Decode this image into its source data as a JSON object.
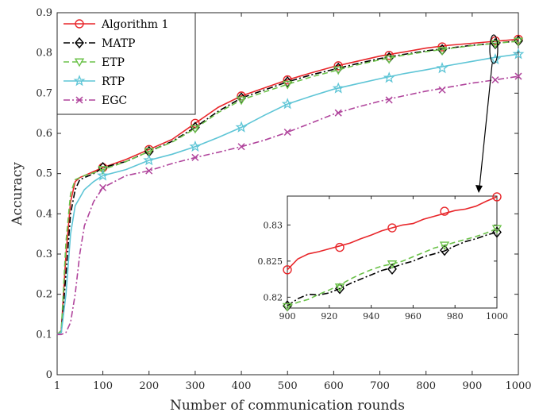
{
  "chart_data": {
    "type": "line",
    "xlabel": "Number of communication rounds",
    "ylabel": "Accuracy",
    "xlim": [
      1,
      1000
    ],
    "ylim": [
      0,
      0.9
    ],
    "xticks": [
      "1",
      "100",
      "200",
      "300",
      "400",
      "500",
      "600",
      "700",
      "800",
      "900",
      "1000"
    ],
    "yticks": [
      "0",
      "0.1",
      "0.2",
      "0.3",
      "0.4",
      "0.5",
      "0.6",
      "0.7",
      "0.8",
      "0.9"
    ],
    "grid": false,
    "legend_position": "top-left",
    "series": [
      {
        "name": "Algorithm 1",
        "color": "#e8262a",
        "marker": "circle",
        "dash": "solid",
        "x": [
          1,
          10,
          20,
          30,
          40,
          50,
          60,
          80,
          100,
          150,
          200,
          250,
          300,
          350,
          400,
          450,
          500,
          550,
          600,
          650,
          700,
          750,
          800,
          850,
          900,
          950,
          1000
        ],
        "y": [
          0.1,
          0.11,
          0.3,
          0.43,
          0.48,
          0.49,
          0.495,
          0.505,
          0.515,
          0.535,
          0.56,
          0.585,
          0.625,
          0.665,
          0.693,
          0.713,
          0.733,
          0.75,
          0.766,
          0.779,
          0.792,
          0.802,
          0.812,
          0.819,
          0.824,
          0.829,
          0.834
        ],
        "marker_x": [
          100,
          200,
          300,
          400,
          500,
          610,
          720,
          835,
          950,
          1000
        ],
        "marker_y": [
          0.515,
          0.56,
          0.625,
          0.693,
          0.733,
          0.768,
          0.794,
          0.815,
          0.83,
          0.834
        ]
      },
      {
        "name": "MATP",
        "color": "#000000",
        "marker": "diamond",
        "dash": "dashdot",
        "x": [
          1,
          10,
          20,
          30,
          40,
          50,
          60,
          80,
          100,
          150,
          200,
          250,
          300,
          350,
          400,
          450,
          500,
          550,
          600,
          650,
          700,
          750,
          800,
          850,
          900,
          950,
          1000
        ],
        "y": [
          0.1,
          0.105,
          0.25,
          0.4,
          0.46,
          0.485,
          0.49,
          0.5,
          0.515,
          0.53,
          0.555,
          0.58,
          0.615,
          0.655,
          0.688,
          0.708,
          0.728,
          0.745,
          0.759,
          0.773,
          0.786,
          0.796,
          0.805,
          0.812,
          0.819,
          0.824,
          0.83
        ],
        "marker_x": [
          100,
          200,
          300,
          400,
          500,
          610,
          720,
          835,
          950,
          1000
        ],
        "marker_y": [
          0.515,
          0.555,
          0.615,
          0.688,
          0.728,
          0.762,
          0.788,
          0.808,
          0.823,
          0.83
        ]
      },
      {
        "name": "ETP",
        "color": "#6cc24a",
        "marker": "triangle-down",
        "dash": "dashed",
        "x": [
          1,
          10,
          20,
          30,
          40,
          50,
          60,
          80,
          100,
          150,
          200,
          250,
          300,
          350,
          400,
          450,
          500,
          550,
          600,
          650,
          700,
          750,
          800,
          850,
          900,
          950,
          1000
        ],
        "y": [
          0.1,
          0.11,
          0.33,
          0.45,
          0.485,
          0.49,
          0.495,
          0.502,
          0.51,
          0.53,
          0.555,
          0.578,
          0.612,
          0.652,
          0.683,
          0.703,
          0.722,
          0.74,
          0.755,
          0.77,
          0.783,
          0.794,
          0.803,
          0.811,
          0.818,
          0.824,
          0.829
        ],
        "marker_x": [
          100,
          200,
          300,
          400,
          500,
          610,
          720,
          835,
          950,
          1000
        ],
        "marker_y": [
          0.51,
          0.555,
          0.612,
          0.683,
          0.722,
          0.758,
          0.785,
          0.806,
          0.823,
          0.829
        ]
      },
      {
        "name": "RTP",
        "color": "#5ec5d6",
        "marker": "star",
        "dash": "solid",
        "x": [
          1,
          10,
          20,
          30,
          40,
          50,
          60,
          80,
          100,
          150,
          200,
          250,
          300,
          350,
          400,
          450,
          500,
          550,
          600,
          650,
          700,
          750,
          800,
          850,
          900,
          950,
          1000
        ],
        "y": [
          0.1,
          0.105,
          0.2,
          0.35,
          0.42,
          0.44,
          0.46,
          0.48,
          0.495,
          0.51,
          0.533,
          0.548,
          0.567,
          0.59,
          0.615,
          0.645,
          0.673,
          0.692,
          0.71,
          0.723,
          0.736,
          0.748,
          0.758,
          0.769,
          0.779,
          0.789,
          0.797
        ],
        "marker_x": [
          100,
          200,
          300,
          400,
          500,
          610,
          720,
          835,
          950,
          1000
        ],
        "marker_y": [
          0.495,
          0.533,
          0.567,
          0.615,
          0.673,
          0.712,
          0.738,
          0.762,
          0.784,
          0.797
        ]
      },
      {
        "name": "EGC",
        "color": "#b0449c",
        "marker": "x",
        "dash": "dashdot",
        "x": [
          1,
          10,
          20,
          30,
          40,
          50,
          60,
          80,
          100,
          150,
          200,
          250,
          300,
          350,
          400,
          450,
          500,
          550,
          600,
          650,
          700,
          750,
          800,
          850,
          900,
          950,
          1000
        ],
        "y": [
          0.1,
          0.1,
          0.105,
          0.13,
          0.2,
          0.3,
          0.37,
          0.43,
          0.465,
          0.495,
          0.507,
          0.525,
          0.54,
          0.553,
          0.567,
          0.583,
          0.603,
          0.625,
          0.648,
          0.665,
          0.68,
          0.693,
          0.705,
          0.715,
          0.725,
          0.733,
          0.742
        ],
        "marker_x": [
          100,
          200,
          300,
          400,
          500,
          610,
          720,
          835,
          950,
          1000
        ],
        "marker_y": [
          0.465,
          0.507,
          0.54,
          0.567,
          0.603,
          0.651,
          0.683,
          0.708,
          0.733,
          0.742
        ]
      }
    ],
    "inset": {
      "xlim": [
        900,
        1000
      ],
      "ylim": [
        0.8185,
        0.834
      ],
      "xticks": [
        "900",
        "920",
        "940",
        "960",
        "980",
        "1000"
      ],
      "yticks": [
        "0.82",
        "0.825",
        "0.83"
      ],
      "series": [
        {
          "name": "Algorithm 1",
          "x": [
            900,
            905,
            910,
            915,
            920,
            925,
            930,
            935,
            940,
            945,
            950,
            955,
            960,
            965,
            970,
            975,
            980,
            985,
            990,
            995,
            1000
          ],
          "y": [
            0.8238,
            0.8253,
            0.826,
            0.8263,
            0.8267,
            0.8271,
            0.8275,
            0.8281,
            0.8286,
            0.8292,
            0.8296,
            0.83,
            0.8302,
            0.8308,
            0.8312,
            0.8316,
            0.832,
            0.8322,
            0.8326,
            0.8333,
            0.8339
          ],
          "marker_x": [
            900,
            925,
            950,
            975,
            1000
          ],
          "marker_y": [
            0.8238,
            0.8269,
            0.8296,
            0.8319,
            0.8339
          ]
        },
        {
          "name": "MATP",
          "x": [
            900,
            905,
            910,
            915,
            920,
            925,
            930,
            935,
            940,
            945,
            950,
            955,
            960,
            965,
            970,
            975,
            980,
            985,
            990,
            995,
            1000
          ],
          "y": [
            0.8188,
            0.8198,
            0.8204,
            0.8203,
            0.8206,
            0.8212,
            0.8219,
            0.8225,
            0.8231,
            0.8237,
            0.8241,
            0.8246,
            0.825,
            0.8256,
            0.826,
            0.8264,
            0.8271,
            0.8277,
            0.8281,
            0.8286,
            0.829
          ],
          "marker_x": [
            900,
            925,
            950,
            975,
            1000
          ],
          "marker_y": [
            0.8188,
            0.8212,
            0.8239,
            0.8265,
            0.829
          ]
        },
        {
          "name": "ETP",
          "x": [
            900,
            905,
            910,
            915,
            920,
            925,
            930,
            935,
            940,
            945,
            950,
            955,
            960,
            965,
            970,
            975,
            980,
            985,
            990,
            995,
            1000
          ],
          "y": [
            0.8187,
            0.8193,
            0.8197,
            0.8204,
            0.821,
            0.8217,
            0.8225,
            0.8232,
            0.8238,
            0.8243,
            0.8246,
            0.825,
            0.8256,
            0.8262,
            0.8268,
            0.8272,
            0.8276,
            0.828,
            0.8284,
            0.8289,
            0.8295
          ],
          "marker_x": [
            900,
            925,
            950,
            975,
            1000
          ],
          "marker_y": [
            0.8187,
            0.8214,
            0.8246,
            0.8272,
            0.8295
          ]
        }
      ]
    }
  }
}
